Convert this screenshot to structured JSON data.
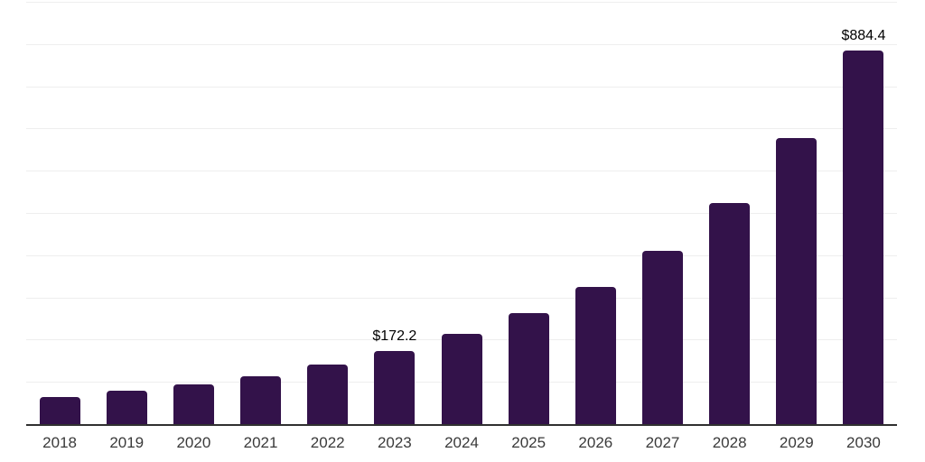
{
  "chart_data": {
    "type": "bar",
    "categories": [
      "2018",
      "2019",
      "2020",
      "2021",
      "2022",
      "2023",
      "2024",
      "2025",
      "2026",
      "2027",
      "2028",
      "2029",
      "2030"
    ],
    "values": [
      65,
      80,
      95,
      113,
      140,
      172.2,
      214,
      262,
      325,
      411,
      523,
      678,
      884.4
    ],
    "value_labels": {
      "2023": "$172.2",
      "2030": "$884.4"
    },
    "ylim": [
      0,
      1000
    ],
    "gridline_step": 100,
    "grid": true,
    "legend_position": "none",
    "currency_prefix": "$"
  },
  "colors": {
    "bar": "#33124a",
    "axis": "#303030",
    "gridline": "#eeeeee",
    "tick_label": "#3a3a3a",
    "value_label": "#000000",
    "background": "#ffffff"
  }
}
